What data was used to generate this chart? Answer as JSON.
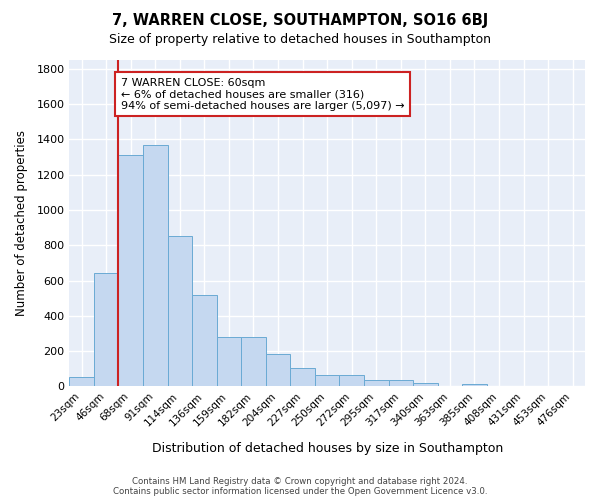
{
  "title": "7, WARREN CLOSE, SOUTHAMPTON, SO16 6BJ",
  "subtitle": "Size of property relative to detached houses in Southampton",
  "xlabel": "Distribution of detached houses by size in Southampton",
  "ylabel": "Number of detached properties",
  "categories": [
    "23sqm",
    "46sqm",
    "68sqm",
    "91sqm",
    "114sqm",
    "136sqm",
    "159sqm",
    "182sqm",
    "204sqm",
    "227sqm",
    "250sqm",
    "272sqm",
    "295sqm",
    "317sqm",
    "340sqm",
    "363sqm",
    "385sqm",
    "408sqm",
    "431sqm",
    "453sqm",
    "476sqm"
  ],
  "values": [
    55,
    640,
    1310,
    1370,
    850,
    520,
    278,
    278,
    185,
    105,
    65,
    65,
    35,
    35,
    20,
    5,
    15,
    0,
    0,
    0,
    0
  ],
  "bar_color": "#c5d8f0",
  "bar_edge_color": "#6aaad4",
  "bg_color": "#ffffff",
  "plot_bg_color": "#e8eef8",
  "grid_color": "#ffffff",
  "vline_x_index": 1.5,
  "vline_color": "#cc2222",
  "annotation_text": "7 WARREN CLOSE: 60sqm\n← 6% of detached houses are smaller (316)\n94% of semi-detached houses are larger (5,097) →",
  "annotation_box_color": "#ffffff",
  "annotation_box_edge": "#cc2222",
  "ylim": [
    0,
    1850
  ],
  "yticks": [
    0,
    200,
    400,
    600,
    800,
    1000,
    1200,
    1400,
    1600,
    1800
  ],
  "footnote1": "Contains HM Land Registry data © Crown copyright and database right 2024.",
  "footnote2": "Contains public sector information licensed under the Open Government Licence v3.0."
}
